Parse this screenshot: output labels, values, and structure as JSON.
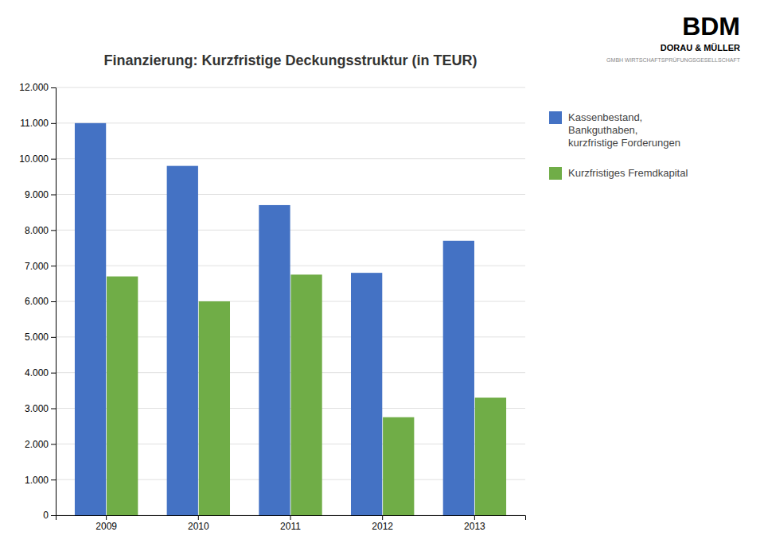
{
  "chart_data": {
    "type": "bar",
    "title": "Finanzierung: Kurzfristige Deckungsstruktur (in TEUR)",
    "categories": [
      "2009",
      "2010",
      "2011",
      "2012",
      "2013"
    ],
    "series": [
      {
        "name": "Kassenbestand,\nBankguthaben,\nkurzfristige Forderungen",
        "color": "#4472C4",
        "values": [
          11000,
          9800,
          8700,
          6800,
          7700
        ]
      },
      {
        "name": "Kurzfristiges Fremdkapital",
        "color": "#70AD47",
        "values": [
          6700,
          6000,
          6750,
          2750,
          3300
        ]
      }
    ],
    "ylim": [
      0,
      12000
    ],
    "yticks": [
      0,
      {
        "value": 1000,
        "label": "1.000"
      },
      {
        "value": 2000,
        "label": "2.000"
      },
      {
        "value": 3000,
        "label": "3.000"
      },
      {
        "value": 4000,
        "label": "4.000"
      },
      {
        "value": 5000,
        "label": "5.000"
      },
      {
        "value": 6000,
        "label": "6.000"
      },
      {
        "value": 7000,
        "label": "7.000"
      },
      {
        "value": 8000,
        "label": "8.000"
      },
      {
        "value": 9000,
        "label": "9.000"
      },
      {
        "value": 10000,
        "label": "10.000"
      },
      {
        "value": 11000,
        "label": "11.000"
      },
      {
        "value": 12000,
        "label": "12.000"
      }
    ],
    "grid": true,
    "legend": "right",
    "annotations": [
      "BDM",
      "DORAU & MÜLLER",
      "GMBH WIRTSCHAFTSPRÜFUNGSGESELLSCHAFT"
    ]
  }
}
